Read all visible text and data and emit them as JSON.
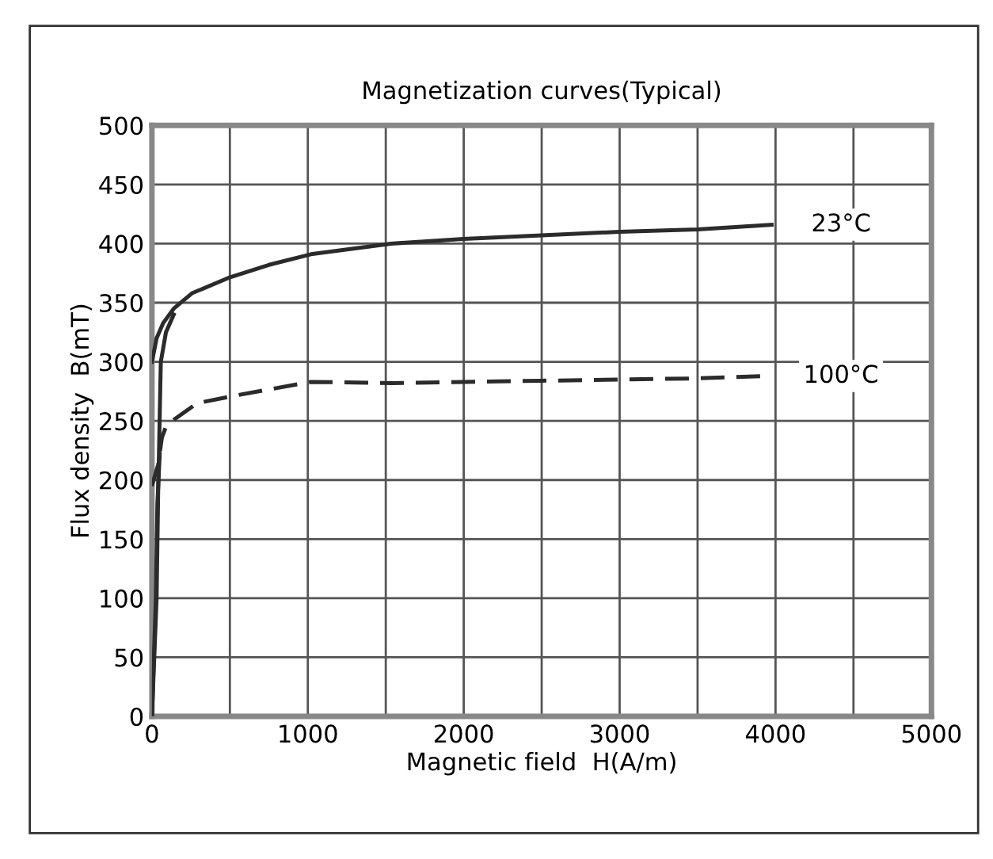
{
  "chart_data": {
    "type": "line",
    "title": "Magnetization curves(Typical)",
    "xlabel": "Magnetic field  H(A/m)",
    "ylabel": "Flux density  B(mT)",
    "xlim": [
      0,
      5000
    ],
    "xticks": [
      0,
      1000,
      2000,
      3000,
      4000,
      5000
    ],
    "ylim": [
      0,
      500
    ],
    "yticks": [
      0,
      50,
      100,
      150,
      200,
      250,
      300,
      350,
      400,
      450,
      500
    ],
    "grid": true,
    "legend": false,
    "marker": "none",
    "series": [
      {
        "name": "23°C",
        "color": "#2b2b2b",
        "line_style": "solid",
        "x": [
          0,
          30,
          73,
          140,
          257,
          490,
          750,
          1020,
          1534,
          2000,
          2500,
          3000,
          3500,
          3975
        ],
        "values": [
          300,
          320,
          333,
          345,
          358,
          371,
          382,
          391,
          400,
          404,
          407,
          410,
          412,
          416
        ]
      },
      {
        "color": "#2b2b2b",
        "line_style": "solid",
        "x": [
          0,
          30,
          40,
          57,
          90,
          140
        ],
        "values": [
          0,
          100,
          190,
          300,
          325,
          340
        ]
      },
      {
        "name": "100°C",
        "color": "#2b2b2b",
        "line_style": "dashed",
        "x": [
          0,
          40,
          64,
          90,
          140,
          290,
          557,
          1020,
          1534,
          2000,
          2500,
          3000,
          3500,
          3925
        ],
        "values": [
          195,
          213,
          236,
          245,
          251,
          265,
          272,
          283,
          282,
          283,
          284,
          285,
          286,
          288
        ]
      },
      {
        "color": "#2b2b2b",
        "line_style": "solid",
        "x": [
          0,
          25,
          35,
          50
        ],
        "values": [
          0,
          100,
          180,
          222
        ]
      }
    ]
  }
}
